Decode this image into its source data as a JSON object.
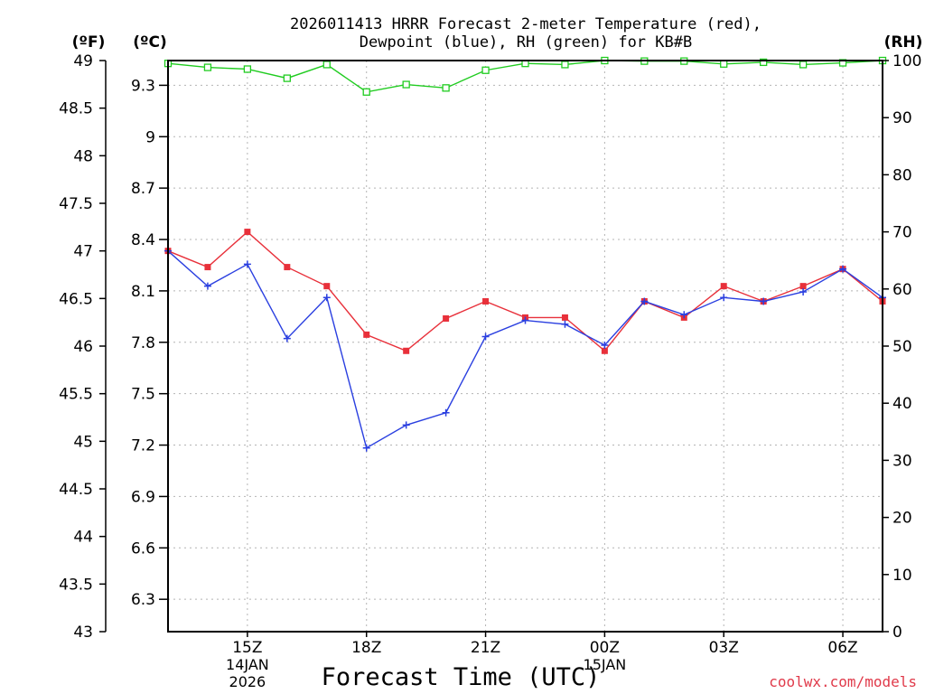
{
  "chart_data": {
    "type": "line",
    "title_line1": "2026011413 HRRR Forecast 2-meter Temperature (red),",
    "title_line2": "Dewpoint (blue), RH (green) for KB#B",
    "axis_units": {
      "fahrenheit": "(ºF)",
      "celsius": "(ºC)",
      "rh": "(RH)"
    },
    "xlabel": "Forecast Time (UTC)",
    "credit": "coolwx.com/models",
    "x_range": [
      13,
      31
    ],
    "x_ticks": [
      {
        "x": 15,
        "label": "15Z",
        "date": "14JAN",
        "year": "2026"
      },
      {
        "x": 18,
        "label": "18Z",
        "date": "",
        "year": ""
      },
      {
        "x": 21,
        "label": "21Z",
        "date": "",
        "year": ""
      },
      {
        "x": 24,
        "label": "00Z",
        "date": "15JAN",
        "year": ""
      },
      {
        "x": 27,
        "label": "03Z",
        "date": "",
        "year": ""
      },
      {
        "x": 30,
        "label": "06Z",
        "date": "",
        "year": ""
      }
    ],
    "fahrenheit_ticks": [
      "43",
      "43.5",
      "44",
      "44.5",
      "45",
      "45.5",
      "46",
      "46.5",
      "47",
      "47.5",
      "48",
      "48.5",
      "49"
    ],
    "fahrenheit_range": [
      43,
      49
    ],
    "celsius_ticks": [
      "6.3",
      "6.6",
      "6.9",
      "7.2",
      "7.5",
      "7.8",
      "8.1",
      "8.4",
      "8.7",
      "9",
      "9.3"
    ],
    "rh_ticks": [
      "0",
      "10",
      "20",
      "30",
      "40",
      "50",
      "60",
      "70",
      "80",
      "90",
      "100"
    ],
    "rh_range": [
      0,
      100
    ],
    "x": [
      13,
      14,
      15,
      16,
      17,
      18,
      19,
      20,
      21,
      22,
      23,
      24,
      25,
      26,
      27,
      28,
      29,
      30,
      31
    ],
    "series": [
      {
        "name": "Temperature",
        "unit": "F",
        "color": "#e8303a",
        "marker": "square",
        "values": [
          47.0,
          46.83,
          47.2,
          46.83,
          46.63,
          46.12,
          45.95,
          46.29,
          46.47,
          46.3,
          46.3,
          45.95,
          46.47,
          46.3,
          46.63,
          46.47,
          46.63,
          46.81,
          46.47
        ]
      },
      {
        "name": "Dewpoint",
        "unit": "F",
        "color": "#2a3fe0",
        "marker": "plus",
        "values": [
          47.0,
          46.63,
          46.86,
          46.08,
          46.51,
          44.93,
          45.17,
          45.3,
          46.1,
          46.27,
          46.23,
          46.01,
          46.47,
          46.33,
          46.51,
          46.47,
          46.57,
          46.81,
          46.51
        ]
      },
      {
        "name": "RH",
        "unit": "%",
        "color": "#20cc20",
        "marker": "square-open",
        "values": [
          99.5,
          98.8,
          98.5,
          96.9,
          99.3,
          94.5,
          95.8,
          95.2,
          98.3,
          99.5,
          99.3,
          100,
          99.9,
          99.9,
          99.4,
          99.7,
          99.3,
          99.6,
          100
        ]
      }
    ]
  }
}
